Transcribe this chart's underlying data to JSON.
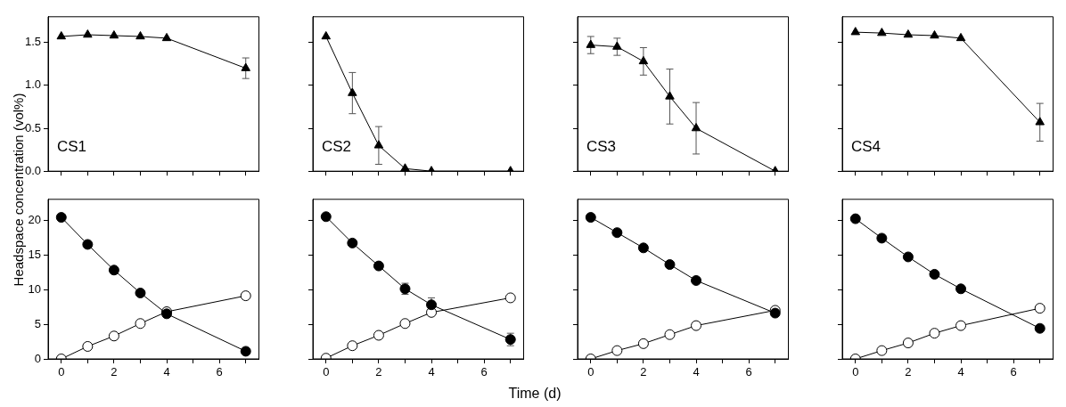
{
  "chart_data": [
    {
      "type": "line",
      "ylabel": "Headspace concentration (vol%)",
      "x": [
        0,
        1,
        2,
        3,
        4,
        7
      ],
      "xlim": [
        -0.5,
        7.5
      ],
      "ylim": [
        0,
        1.8
      ],
      "marker": "triangle",
      "tick_labels": "y",
      "annotations": [
        "CS1"
      ],
      "xticks": [
        {
          "value": 0,
          "label": null
        },
        {
          "value": 1,
          "label": null
        },
        {
          "value": 2,
          "label": null
        },
        {
          "value": 3,
          "label": null
        },
        {
          "value": 4,
          "label": null
        },
        {
          "value": 5,
          "label": null
        },
        {
          "value": 6,
          "label": null
        },
        {
          "value": 7,
          "label": null
        }
      ],
      "yticks": [
        {
          "value": 0,
          "label": "0.0"
        },
        {
          "value": 0.5,
          "label": "0.5"
        },
        {
          "value": 1,
          "label": "1.0"
        },
        {
          "value": 1.5,
          "label": "1.5"
        }
      ],
      "series": [
        {
          "color": "#000000",
          "values": [
            1.57,
            1.59,
            1.58,
            1.57,
            1.55,
            1.2
          ],
          "errors": [
            null,
            null,
            null,
            null,
            null,
            0.12
          ]
        }
      ]
    },
    {
      "type": "line",
      "x": [
        0,
        1,
        2,
        3,
        4,
        7
      ],
      "xlim": [
        -0.5,
        7.5
      ],
      "ylim": [
        0,
        1.8
      ],
      "marker": "triangle",
      "tick_labels": false,
      "annotations": [
        "CS2"
      ],
      "xticks": [
        {
          "value": 0,
          "label": null
        },
        {
          "value": 1,
          "label": null
        },
        {
          "value": 2,
          "label": null
        },
        {
          "value": 3,
          "label": null
        },
        {
          "value": 4,
          "label": null
        },
        {
          "value": 5,
          "label": null
        },
        {
          "value": 6,
          "label": null
        },
        {
          "value": 7,
          "label": null
        }
      ],
      "yticks": [
        {
          "value": 0,
          "label": null
        },
        {
          "value": 0.5,
          "label": null
        },
        {
          "value": 1,
          "label": null
        },
        {
          "value": 1.5,
          "label": null
        }
      ],
      "series": [
        {
          "color": "#000000",
          "values": [
            1.57,
            0.91,
            0.3,
            0.03,
            0,
            0
          ],
          "errors": [
            null,
            0.24,
            0.22,
            null,
            null,
            null
          ]
        }
      ]
    },
    {
      "type": "line",
      "x": [
        0,
        1,
        2,
        3,
        4,
        7
      ],
      "xlim": [
        -0.5,
        7.5
      ],
      "ylim": [
        0,
        1.8
      ],
      "marker": "triangle",
      "tick_labels": false,
      "annotations": [
        "CS3"
      ],
      "xticks": [
        {
          "value": 0,
          "label": null
        },
        {
          "value": 1,
          "label": null
        },
        {
          "value": 2,
          "label": null
        },
        {
          "value": 3,
          "label": null
        },
        {
          "value": 4,
          "label": null
        },
        {
          "value": 5,
          "label": null
        },
        {
          "value": 6,
          "label": null
        },
        {
          "value": 7,
          "label": null
        }
      ],
      "yticks": [
        {
          "value": 0,
          "label": null
        },
        {
          "value": 0.5,
          "label": null
        },
        {
          "value": 1,
          "label": null
        },
        {
          "value": 1.5,
          "label": null
        }
      ],
      "series": [
        {
          "color": "#000000",
          "values": [
            1.47,
            1.45,
            1.28,
            0.87,
            0.5,
            0
          ],
          "errors": [
            0.1,
            0.1,
            0.16,
            0.32,
            0.3,
            null
          ]
        }
      ]
    },
    {
      "type": "line",
      "x": [
        0,
        1,
        2,
        3,
        4,
        7
      ],
      "xlim": [
        -0.5,
        7.5
      ],
      "ylim": [
        0,
        1.8
      ],
      "marker": "triangle",
      "tick_labels": false,
      "annotations": [
        "CS4"
      ],
      "xticks": [
        {
          "value": 0,
          "label": null
        },
        {
          "value": 1,
          "label": null
        },
        {
          "value": 2,
          "label": null
        },
        {
          "value": 3,
          "label": null
        },
        {
          "value": 4,
          "label": null
        },
        {
          "value": 5,
          "label": null
        },
        {
          "value": 6,
          "label": null
        },
        {
          "value": 7,
          "label": null
        }
      ],
      "yticks": [
        {
          "value": 0,
          "label": null
        },
        {
          "value": 0.5,
          "label": null
        },
        {
          "value": 1,
          "label": null
        },
        {
          "value": 1.5,
          "label": null
        }
      ],
      "series": [
        {
          "color": "#000000",
          "values": [
            1.62,
            1.61,
            1.59,
            1.58,
            1.55,
            0.57
          ],
          "errors": [
            null,
            null,
            null,
            null,
            null,
            0.22
          ]
        }
      ]
    },
    {
      "type": "line",
      "x": [
        0,
        1,
        2,
        3,
        4,
        7
      ],
      "xlim": [
        -0.5,
        7.5
      ],
      "ylim": [
        0,
        23
      ],
      "marker": "circle",
      "xticks": [
        0,
        {
          "value": 1,
          "label": null
        },
        2,
        {
          "value": 3,
          "label": null
        },
        4,
        {
          "value": 5,
          "label": null
        },
        6,
        {
          "value": 7,
          "label": null
        }
      ],
      "yticks": [
        0,
        5,
        10,
        15,
        20
      ],
      "series": [
        {
          "color": "#000000",
          "values": [
            20.4,
            16.5,
            12.8,
            9.5,
            6.5,
            1.1
          ]
        },
        {
          "color": "#ffffff",
          "values": [
            0,
            1.8,
            3.3,
            5.1,
            6.8,
            9.1
          ]
        }
      ]
    },
    {
      "type": "line",
      "xlabel": "Time (d)",
      "x": [
        0,
        1,
        2,
        3,
        4,
        7
      ],
      "xlim": [
        -0.5,
        7.5
      ],
      "ylim": [
        0,
        23
      ],
      "marker": "circle",
      "tick_labels": "x",
      "xticks": [
        0,
        {
          "value": 1,
          "label": null
        },
        2,
        {
          "value": 3,
          "label": null
        },
        4,
        {
          "value": 5,
          "label": null
        },
        6,
        {
          "value": 7,
          "label": null
        }
      ],
      "yticks": [
        0,
        5,
        10,
        15,
        20
      ],
      "series": [
        {
          "color": "#000000",
          "values": [
            20.5,
            16.7,
            13.4,
            10.1,
            7.8,
            2.8
          ],
          "errors": [
            null,
            null,
            null,
            0.8,
            1,
            0.9
          ]
        },
        {
          "color": "#ffffff",
          "values": [
            0.1,
            1.9,
            3.4,
            5.1,
            6.7,
            8.8
          ]
        }
      ]
    },
    {
      "type": "line",
      "x": [
        0,
        1,
        2,
        3,
        4,
        7
      ],
      "xlim": [
        -0.5,
        7.5
      ],
      "ylim": [
        0,
        23
      ],
      "marker": "circle",
      "tick_labels": "x",
      "xticks": [
        0,
        {
          "value": 1,
          "label": null
        },
        2,
        {
          "value": 3,
          "label": null
        },
        4,
        {
          "value": 5,
          "label": null
        },
        6,
        {
          "value": 7,
          "label": null
        }
      ],
      "yticks": [
        0,
        5,
        10,
        15,
        20
      ],
      "series": [
        {
          "color": "#000000",
          "values": [
            20.4,
            18.2,
            16,
            13.6,
            11.3,
            6.6
          ]
        },
        {
          "color": "#ffffff",
          "values": [
            0,
            1.2,
            2.2,
            3.5,
            4.8,
            7
          ]
        }
      ]
    },
    {
      "type": "line",
      "x": [
        0,
        1,
        2,
        3,
        4,
        7
      ],
      "xlim": [
        -0.5,
        7.5
      ],
      "ylim": [
        0,
        23
      ],
      "marker": "circle",
      "tick_labels": "x",
      "xticks": [
        0,
        {
          "value": 1,
          "label": null
        },
        2,
        {
          "value": 3,
          "label": null
        },
        4,
        {
          "value": 5,
          "label": null
        },
        6,
        {
          "value": 7,
          "label": null
        }
      ],
      "yticks": [
        0,
        5,
        10,
        15,
        20
      ],
      "series": [
        {
          "color": "#000000",
          "values": [
            20.2,
            17.4,
            14.7,
            12.2,
            10.1,
            4.4
          ]
        },
        {
          "color": "#ffffff",
          "values": [
            0,
            1.2,
            2.3,
            3.7,
            4.8,
            7.3
          ]
        }
      ]
    }
  ]
}
